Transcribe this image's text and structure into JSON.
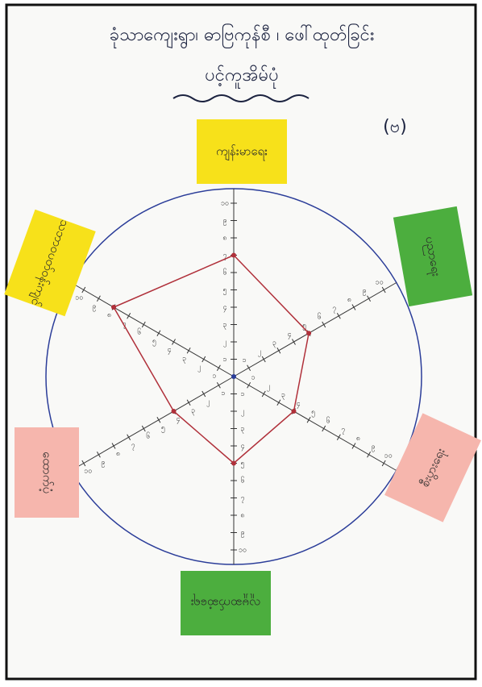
{
  "chart_data": {
    "type": "radar",
    "title": "ခုံသာကျေးရွာ၊ ဓာဗြကုန်စီ ၊ ဖေါ်ထုတ်ခြင်း",
    "subtitle": "ပင့်ကူအိမ်ပုံ",
    "annotation": "(ဗ)",
    "categories": [
      "ကျန်းမာရေး",
      "ပညာရေး",
      "စီးပွားရေး",
      "လူမှုဆက်ဆံရေး",
      "ထောက်ပံ့",
      "သဘာဝပတ်ဝန်းကျင်"
    ],
    "values": [
      7,
      5,
      4,
      5,
      4,
      8
    ],
    "color": "#b0303a",
    "rlim": [
      0,
      10
    ],
    "rticks": [
      {
        "value": 1,
        "label": "၁"
      },
      {
        "value": 2,
        "label": "၂"
      },
      {
        "value": 3,
        "label": "၃"
      },
      {
        "value": 4,
        "label": "၄"
      },
      {
        "value": 5,
        "label": "၅"
      },
      {
        "value": 6,
        "label": "၆"
      },
      {
        "value": 7,
        "label": "၇"
      },
      {
        "value": 8,
        "label": "၈"
      },
      {
        "value": 9,
        "label": "၉"
      },
      {
        "value": 10,
        "label": "၁၀"
      }
    ]
  }
}
